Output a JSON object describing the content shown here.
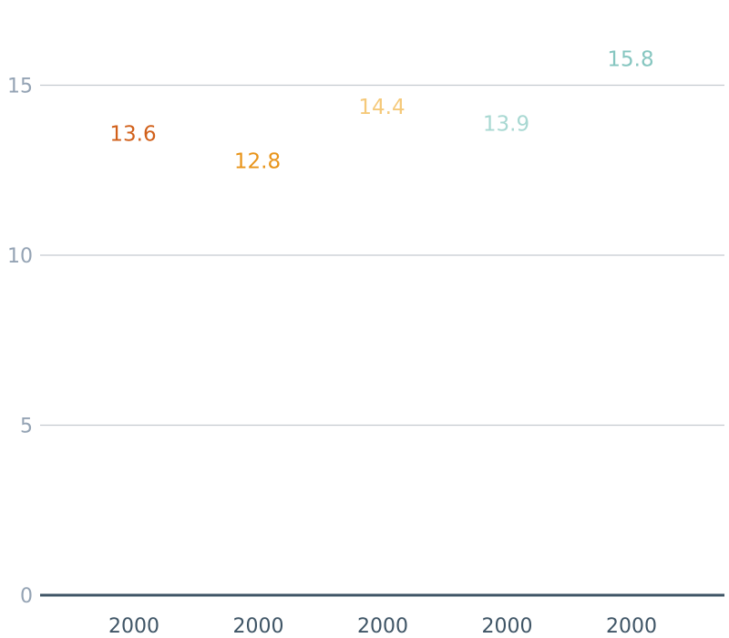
{
  "chart_data": {
    "type": "bar",
    "title": "",
    "xlabel": "",
    "ylabel": "",
    "categories": [
      "2000",
      "2000",
      "2000",
      "2000",
      "2000"
    ],
    "values": [
      13.6,
      12.8,
      14.4,
      13.9,
      15.8
    ],
    "value_labels": [
      "13.6",
      "12.8",
      "14.4",
      "13.9",
      "15.8"
    ],
    "colors": [
      "#d1601a",
      "#e8941a",
      "#f5c97a",
      "#a8d8d2",
      "#86c6c0"
    ],
    "ylim": [
      0,
      17.5
    ],
    "yticks": [
      0,
      5,
      10,
      15
    ],
    "ytick_labels": [
      "0",
      "5",
      "10",
      "15"
    ],
    "grid": true,
    "legend": "none"
  }
}
